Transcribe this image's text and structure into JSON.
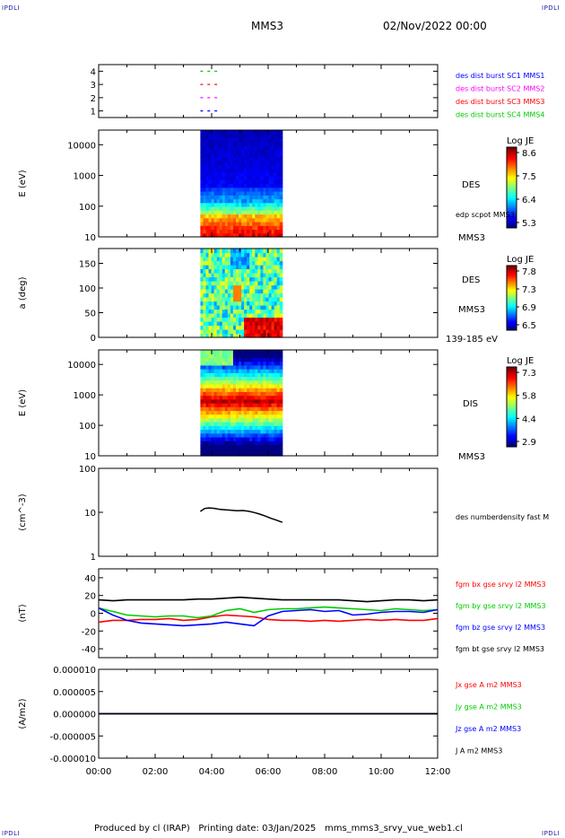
{
  "header": {
    "corner_label": "IPDLI",
    "spacecraft": "MMS3",
    "date": "02/Nov/2022 00:00"
  },
  "footer": {
    "produced_by": "Produced by cl (IRAP)",
    "printing_date": "Printing date: 03/Jan/2025",
    "script_name": "mms_mms3_srvy_vue_web1.cl"
  },
  "colors": {
    "blue": "#0000ff",
    "magenta": "#ff00ff",
    "red": "#ff0000",
    "green": "#00cc00",
    "black": "#000000"
  },
  "chart_data": [
    {
      "type": "scatter",
      "panel": "burst-availability",
      "ylim": [
        0.5,
        4.5
      ],
      "y_ticks": [
        "1",
        "2",
        "3",
        "4"
      ],
      "xlim": [
        0,
        12
      ],
      "x_unit": "hours",
      "series": [
        {
          "name": "des dist burst SC1 MMS1",
          "color": "#0000ff",
          "y": 1,
          "x": [
            3.6,
            3.85,
            4.1
          ]
        },
        {
          "name": "des dist burst SC2 MMS2",
          "color": "#ff00ff",
          "y": 2,
          "x": [
            3.6,
            3.85,
            4.1
          ]
        },
        {
          "name": "des dist burst SC3 MMS3",
          "color": "#ff0000",
          "y": 3,
          "x": [
            3.6,
            3.85,
            4.1
          ]
        },
        {
          "name": "des dist burst SC4 MMS4",
          "color": "#00cc00",
          "y": 4,
          "x": [
            3.6,
            3.85,
            4.1
          ]
        }
      ]
    },
    {
      "type": "heatmap",
      "panel": "des-energy",
      "ylabel": "E (eV)",
      "y_scale": "log",
      "ylim": [
        10,
        30000
      ],
      "y_ticks": [
        "10",
        "100",
        "1000",
        "10000"
      ],
      "xlim": [
        0,
        12
      ],
      "data_x_range": [
        3.6,
        6.5
      ],
      "side_labels": [
        "DES",
        "edp scpot MMS3",
        "MMS3"
      ],
      "colorbar": {
        "title": "Log JE",
        "ticks": [
          "8.6",
          "7.5",
          "6.4",
          "5.3"
        ],
        "min": 5.3,
        "max": 8.6
      }
    },
    {
      "type": "heatmap",
      "panel": "des-pitch-angle",
      "ylabel": "a (deg)",
      "ylim": [
        0,
        180
      ],
      "y_ticks": [
        "0",
        "50",
        "100",
        "150"
      ],
      "xlim": [
        0,
        12
      ],
      "data_x_range": [
        3.6,
        6.5
      ],
      "side_labels": [
        "DES",
        "MMS3",
        "139-185 eV"
      ],
      "colorbar": {
        "title": "Log JE",
        "ticks": [
          "7.8",
          "7.3",
          "6.9",
          "6.5"
        ],
        "min": 6.5,
        "max": 7.8
      }
    },
    {
      "type": "heatmap",
      "panel": "dis-energy",
      "ylabel": "E (eV)",
      "y_scale": "log",
      "ylim": [
        10,
        30000
      ],
      "y_ticks": [
        "10",
        "100",
        "1000",
        "10000"
      ],
      "xlim": [
        0,
        12
      ],
      "data_x_range": [
        3.6,
        6.5
      ],
      "side_labels": [
        "DIS",
        "MMS3"
      ],
      "colorbar": {
        "title": "Log JE",
        "ticks": [
          "7.3",
          "5.8",
          "4.4",
          "2.9"
        ],
        "min": 2.9,
        "max": 7.3
      }
    },
    {
      "type": "line",
      "panel": "density",
      "ylabel": "(cm^-3)",
      "y_scale": "log",
      "ylim": [
        1,
        100
      ],
      "y_ticks": [
        "1",
        "10",
        "100"
      ],
      "xlim": [
        0,
        12
      ],
      "series": [
        {
          "name": "des numberdensity fast M",
          "color": "#000000",
          "x": [
            3.6,
            3.75,
            3.9,
            4.1,
            4.3,
            4.5,
            4.7,
            4.9,
            5.1,
            5.3,
            5.5,
            5.7,
            5.9,
            6.1,
            6.3,
            6.5
          ],
          "y": [
            10.5,
            12.2,
            12.6,
            12.3,
            11.6,
            11.4,
            11.1,
            10.9,
            11.0,
            10.6,
            9.9,
            9.1,
            8.2,
            7.3,
            6.6,
            5.9
          ]
        }
      ]
    },
    {
      "type": "line",
      "panel": "magnetic-field",
      "ylabel": "(nT)",
      "ylim": [
        -50,
        50
      ],
      "y_ticks": [
        "-40",
        "-20",
        "0",
        "20",
        "40"
      ],
      "xlim": [
        0,
        12
      ],
      "x": [
        0,
        0.5,
        1,
        1.5,
        2,
        2.5,
        3,
        3.5,
        4,
        4.5,
        5,
        5.5,
        6,
        6.5,
        7,
        7.5,
        8,
        8.5,
        9,
        9.5,
        10,
        10.5,
        11,
        11.5,
        12
      ],
      "series": [
        {
          "name": "fgm bx gse srvy l2 MMS3",
          "color": "#ff0000",
          "y": [
            -10,
            -8,
            -8,
            -7,
            -7,
            -6,
            -8,
            -7,
            -4,
            -2,
            -3,
            -4,
            -7,
            -8,
            -8,
            -9,
            -8,
            -9,
            -8,
            -7,
            -8,
            -7,
            -8,
            -8,
            -6
          ]
        },
        {
          "name": "fgm by gse srvy l2 MMS3",
          "color": "#00cc00",
          "y": [
            6,
            2,
            -2,
            -3,
            -4,
            -3,
            -3,
            -5,
            -3,
            3,
            5,
            1,
            4,
            5,
            5,
            6,
            7,
            6,
            5,
            4,
            3,
            5,
            4,
            3,
            4
          ]
        },
        {
          "name": "fgm bz gse srvy l2 MMS3",
          "color": "#0000ff",
          "y": [
            6,
            -2,
            -8,
            -11,
            -12,
            -13,
            -14,
            -13,
            -12,
            -10,
            -12,
            -14,
            -3,
            2,
            3,
            4,
            2,
            3,
            -2,
            -1,
            1,
            2,
            2,
            1,
            4
          ]
        },
        {
          "name": "fgm bt gse srvy l2 MMS3",
          "color": "#000000",
          "y": [
            15,
            14,
            15,
            15,
            15,
            15,
            15,
            16,
            16,
            17,
            18,
            17,
            16,
            15,
            15,
            15,
            15,
            15,
            14,
            13,
            14,
            15,
            15,
            14,
            15
          ]
        }
      ]
    },
    {
      "type": "line",
      "panel": "current-density",
      "ylabel": "(A/m2)",
      "ylim": [
        -1e-05,
        1e-05
      ],
      "y_ticks": [
        "-0.000010",
        "-0.000005",
        "0.000000",
        "0.000005",
        "0.000010"
      ],
      "xlim": [
        0,
        12
      ],
      "x_ticks": [
        "00:00",
        "02:00",
        "04:00",
        "06:00",
        "08:00",
        "10:00",
        "12:00"
      ],
      "series": [
        {
          "name": "Jx gse A m2 MMS3",
          "color": "#ff0000",
          "x": [
            0,
            12
          ],
          "y": [
            0,
            0
          ]
        },
        {
          "name": "Jy gse A m2 MMS3",
          "color": "#00cc00",
          "x": [
            0,
            12
          ],
          "y": [
            0,
            0
          ]
        },
        {
          "name": "Jz gse A m2 MMS3",
          "color": "#0000ff",
          "x": [
            0,
            12
          ],
          "y": [
            0,
            0
          ]
        },
        {
          "name": "J A m2 MMS3",
          "color": "#000000",
          "x": [
            0,
            12
          ],
          "y": [
            0,
            0
          ]
        }
      ]
    }
  ]
}
